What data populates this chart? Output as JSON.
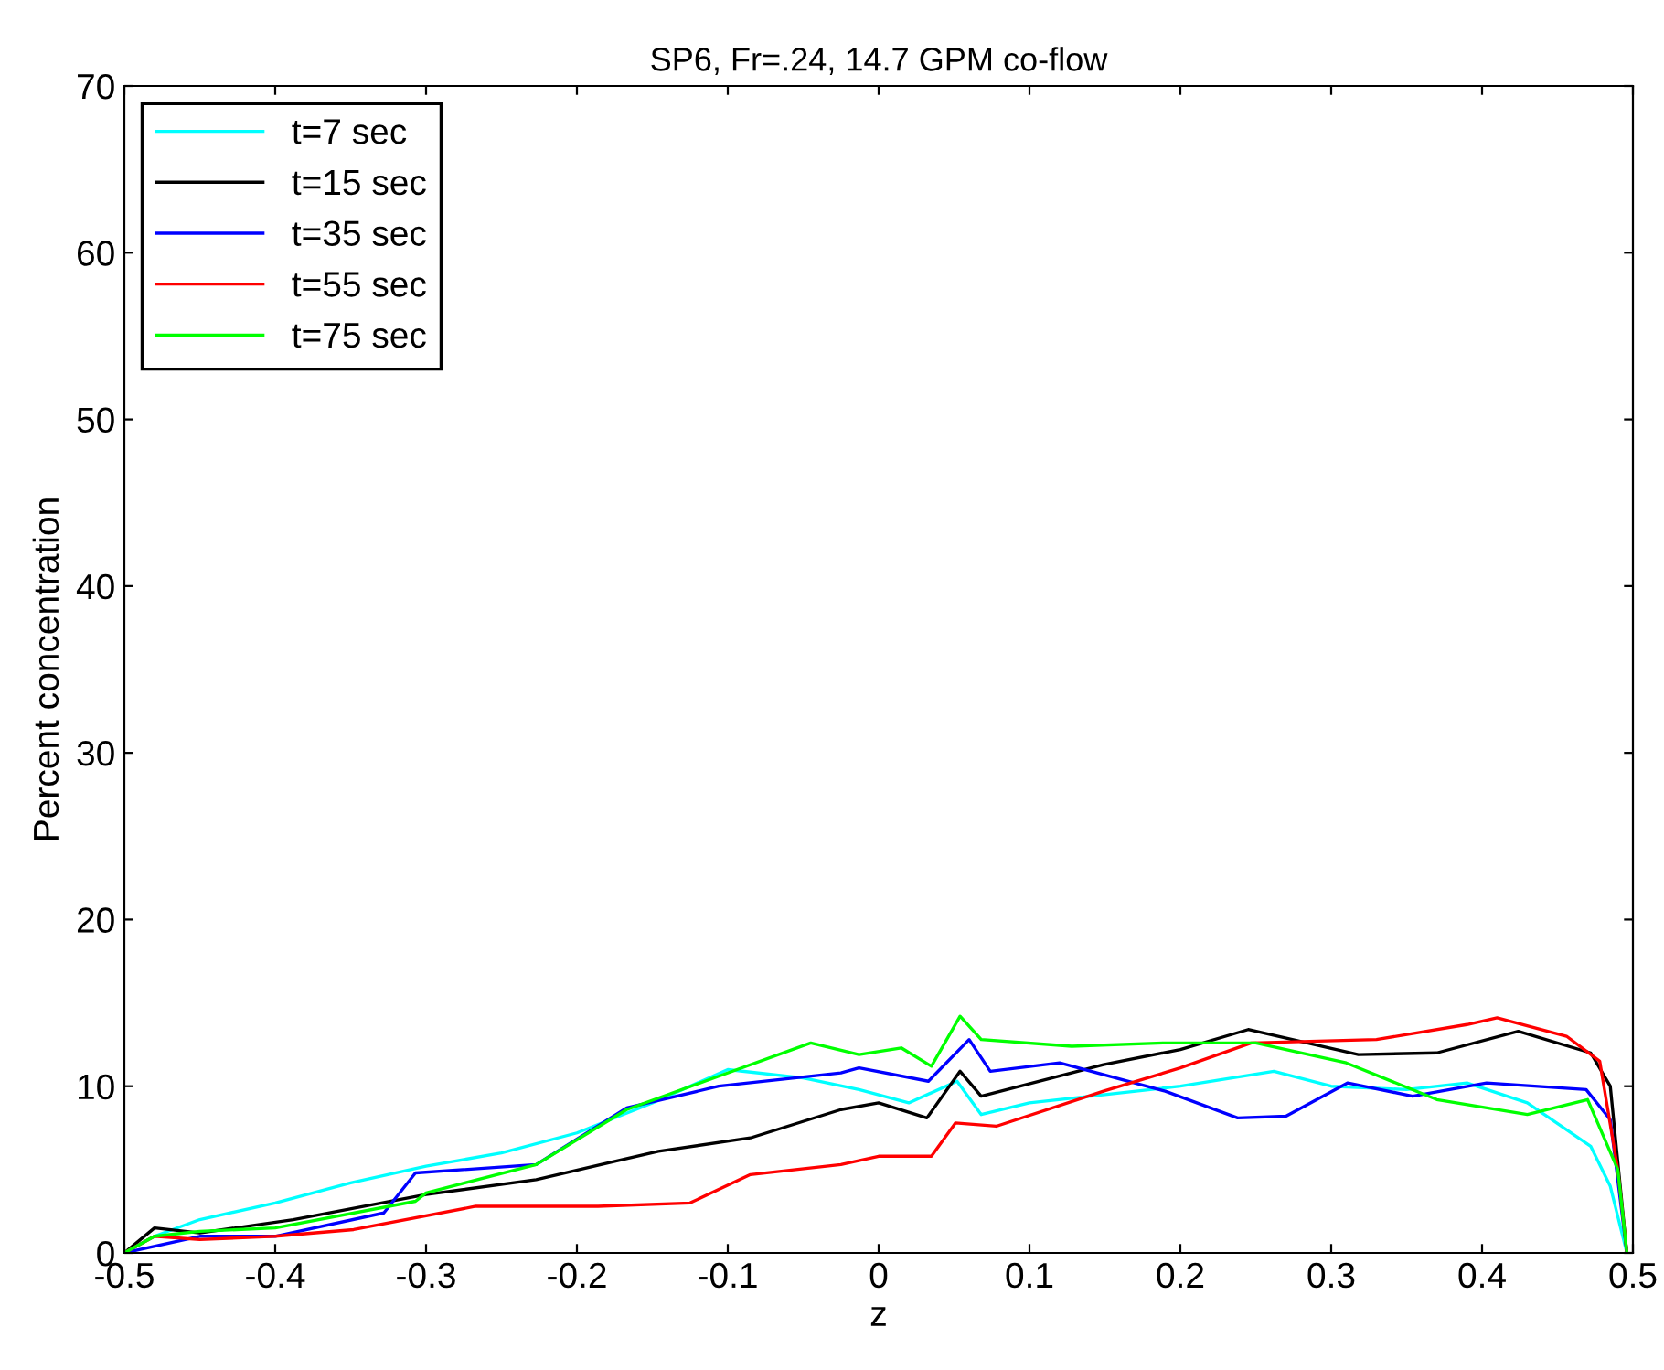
{
  "chart_data": {
    "type": "line",
    "title": "SP6, Fr=.24, 14.7 GPM co-flow",
    "xlabel": "z",
    "ylabel": "Percent concentration",
    "xlim": [
      -0.5,
      0.5
    ],
    "ylim": [
      0,
      70
    ],
    "xticks": [
      -0.5,
      -0.4,
      -0.3,
      -0.2,
      -0.1,
      0,
      0.1,
      0.2,
      0.3,
      0.4,
      0.5
    ],
    "yticks": [
      0,
      10,
      20,
      30,
      40,
      50,
      60,
      70
    ],
    "grid": false,
    "legend": "top left",
    "marker": "none",
    "line_style": "solid",
    "series": [
      {
        "name": "t=7 sec",
        "color": "#00ffff",
        "x": [
          -0.5,
          -0.48,
          -0.45,
          -0.4,
          -0.35,
          -0.3,
          -0.25,
          -0.2,
          -0.15,
          -0.1,
          -0.05,
          -0.013,
          0.02,
          0.052,
          0.068,
          0.1,
          0.15,
          0.2,
          0.262,
          0.3,
          0.35,
          0.39,
          0.43,
          0.472,
          0.485,
          0.496
        ],
        "values": [
          0,
          1,
          2,
          3,
          4.2,
          5.2,
          6,
          7.2,
          9,
          11,
          10.5,
          9.8,
          9,
          10.3,
          8.3,
          9,
          9.5,
          10,
          10.9,
          10,
          9.8,
          10.2,
          9,
          6.4,
          4,
          0
        ]
      },
      {
        "name": "t=15 sec",
        "color": "#000000",
        "x": [
          -0.5,
          -0.48,
          -0.45,
          -0.388,
          -0.3,
          -0.227,
          -0.146,
          -0.085,
          -0.025,
          0.0,
          0.032,
          0.054,
          0.068,
          0.149,
          0.2,
          0.245,
          0.318,
          0.37,
          0.424,
          0.472,
          0.485,
          0.496
        ],
        "values": [
          0,
          1.5,
          1.2,
          2.0,
          3.5,
          4.4,
          6.1,
          6.9,
          8.6,
          9,
          8.1,
          10.9,
          9.4,
          11.3,
          12.2,
          13.4,
          11.9,
          12,
          13.3,
          12,
          10,
          0
        ]
      },
      {
        "name": "t=35 sec",
        "color": "#0000ff",
        "x": [
          -0.5,
          -0.45,
          -0.4,
          -0.328,
          -0.307,
          -0.227,
          -0.167,
          -0.106,
          -0.025,
          -0.013,
          0.033,
          0.06,
          0.074,
          0.12,
          0.19,
          0.238,
          0.27,
          0.311,
          0.354,
          0.403,
          0.469,
          0.485,
          0.496
        ],
        "values": [
          0,
          1,
          1,
          2.4,
          4.8,
          5.3,
          8.7,
          10,
          10.8,
          11.1,
          10.3,
          12.8,
          10.9,
          11.4,
          9.7,
          8.1,
          8.2,
          10.2,
          9.4,
          10.2,
          9.8,
          8,
          0
        ]
      },
      {
        "name": "t=55 sec",
        "color": "#ff0000",
        "x": [
          -0.5,
          -0.48,
          -0.45,
          -0.4,
          -0.348,
          -0.267,
          -0.186,
          -0.125,
          -0.085,
          -0.025,
          0.0,
          0.035,
          0.051,
          0.078,
          0.149,
          0.2,
          0.247,
          0.33,
          0.39,
          0.41,
          0.456,
          0.478,
          0.49,
          0.496
        ],
        "values": [
          0,
          1,
          0.8,
          1,
          1.4,
          2.8,
          2.8,
          3.0,
          4.7,
          5.3,
          5.8,
          5.8,
          7.8,
          7.6,
          9.7,
          11.1,
          12.6,
          12.8,
          13.7,
          14.1,
          13,
          11.5,
          5,
          0
        ]
      },
      {
        "name": "t=75 sec",
        "color": "#00ff00",
        "x": [
          -0.5,
          -0.48,
          -0.45,
          -0.4,
          -0.307,
          -0.3,
          -0.227,
          -0.167,
          -0.106,
          -0.045,
          -0.013,
          0.015,
          0.035,
          0.054,
          0.068,
          0.128,
          0.189,
          0.25,
          0.31,
          0.37,
          0.43,
          0.47,
          0.49,
          0.496
        ],
        "values": [
          0,
          1,
          1.3,
          1.5,
          3.1,
          3.6,
          5.3,
          8.6,
          10.6,
          12.6,
          11.9,
          12.3,
          11.2,
          14.2,
          12.8,
          12.4,
          12.6,
          12.6,
          11.4,
          9.2,
          8.3,
          9.2,
          5,
          0
        ]
      }
    ]
  }
}
